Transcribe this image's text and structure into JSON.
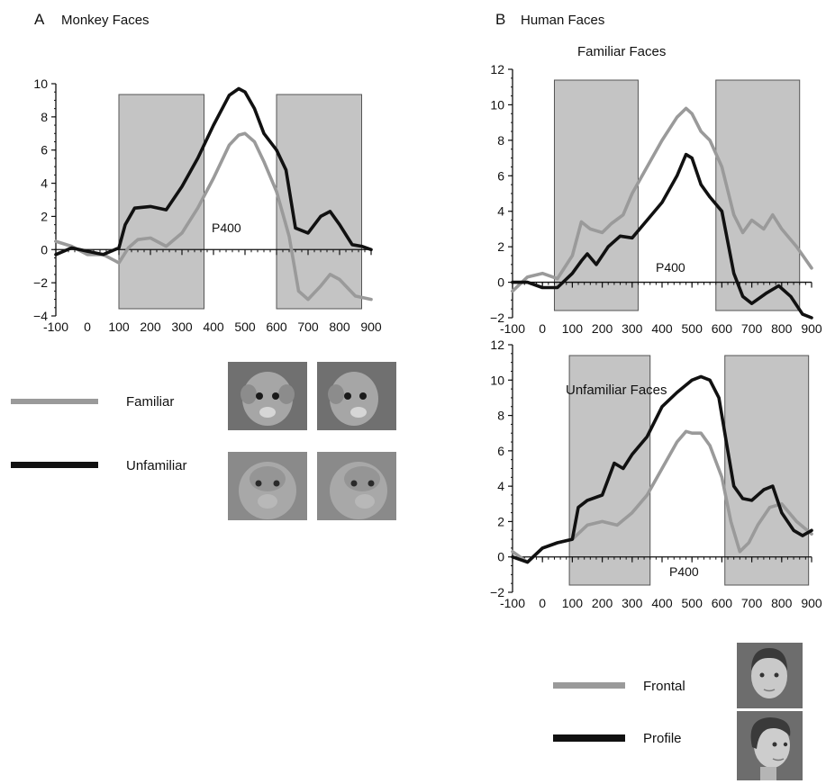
{
  "panel_a": {
    "letter": "A",
    "title": "Monkey Faces"
  },
  "panel_b": {
    "letter": "B",
    "title": "Human Faces"
  },
  "colors": {
    "light_series": "#9a9a9a",
    "dark_series": "#111111",
    "shaded_window": "#c4c4c4"
  },
  "legend_a": {
    "items": [
      "Familiar",
      "Unfamiliar"
    ],
    "icons": [
      "monkey-face-photo-frontal",
      "monkey-face-photo-profile"
    ]
  },
  "legend_b": {
    "items": [
      "Frontal",
      "Profile"
    ],
    "icons": [
      "human-face-photo-frontal",
      "human-face-photo-profile"
    ]
  },
  "chart_data": [
    {
      "id": "monkey",
      "type": "line",
      "title": "",
      "annotation": "P400",
      "xlim": [
        -100,
        900
      ],
      "ylim": [
        -4,
        10
      ],
      "xticks": [
        -100,
        0,
        100,
        200,
        300,
        400,
        500,
        600,
        700,
        800,
        900
      ],
      "xtick_labels": [
        "-100",
        "0",
        "100",
        "200",
        "300",
        "400",
        "500",
        "600",
        "700",
        "800",
        "900"
      ],
      "yticks": [
        -4,
        -2,
        0,
        2,
        4,
        6,
        8,
        10
      ],
      "ytick_labels": [
        "−4",
        "−2",
        "0",
        "2",
        "4",
        "6",
        "8",
        "10"
      ],
      "windows": [
        [
          100,
          370
        ],
        [
          600,
          870
        ]
      ],
      "series": [
        {
          "name": "Familiar",
          "style": "light",
          "x": [
            -100,
            -50,
            0,
            50,
            100,
            130,
            160,
            200,
            250,
            300,
            350,
            400,
            450,
            480,
            500,
            530,
            560,
            600,
            640,
            670,
            700,
            740,
            770,
            800,
            850,
            900
          ],
          "y": [
            0.5,
            0.2,
            -0.3,
            -0.3,
            -0.8,
            0.1,
            0.6,
            0.7,
            0.2,
            1.0,
            2.5,
            4.3,
            6.3,
            6.9,
            7.0,
            6.5,
            5.3,
            3.5,
            0.8,
            -2.5,
            -3.0,
            -2.2,
            -1.5,
            -1.8,
            -2.8,
            -3.0
          ]
        },
        {
          "name": "Unfamiliar",
          "style": "dark",
          "x": [
            -100,
            -50,
            0,
            50,
            100,
            120,
            150,
            200,
            250,
            300,
            350,
            400,
            450,
            480,
            500,
            530,
            560,
            600,
            630,
            660,
            700,
            740,
            770,
            800,
            840,
            870,
            900
          ],
          "y": [
            -0.3,
            0.1,
            -0.1,
            -0.3,
            0.1,
            1.5,
            2.5,
            2.6,
            2.4,
            3.8,
            5.5,
            7.5,
            9.3,
            9.7,
            9.5,
            8.5,
            7.0,
            6.0,
            4.8,
            1.3,
            1.0,
            2.0,
            2.3,
            1.5,
            0.3,
            0.2,
            0.0
          ]
        }
      ]
    },
    {
      "id": "human-familiar",
      "type": "line",
      "title": "Familiar Faces",
      "annotation": "P400",
      "xlim": [
        -100,
        900
      ],
      "ylim": [
        -2,
        12
      ],
      "xticks": [
        -100,
        0,
        100,
        200,
        300,
        400,
        500,
        600,
        700,
        800,
        900
      ],
      "xtick_labels": [
        "-100",
        "0",
        "100",
        "200",
        "300",
        "400",
        "500",
        "600",
        "700",
        "800",
        "900"
      ],
      "yticks": [
        -2,
        0,
        2,
        4,
        6,
        8,
        10,
        12
      ],
      "ytick_labels": [
        "−2",
        "0",
        "2",
        "4",
        "6",
        "8",
        "10",
        "12"
      ],
      "windows": [
        [
          40,
          320
        ],
        [
          580,
          860
        ]
      ],
      "series": [
        {
          "name": "Frontal",
          "style": "light",
          "x": [
            -100,
            -50,
            0,
            50,
            100,
            130,
            160,
            200,
            230,
            270,
            300,
            350,
            400,
            450,
            480,
            500,
            530,
            560,
            600,
            640,
            670,
            700,
            740,
            770,
            800,
            850,
            900
          ],
          "y": [
            -0.5,
            0.3,
            0.5,
            0.2,
            1.5,
            3.4,
            3.0,
            2.8,
            3.3,
            3.8,
            5.0,
            6.5,
            8.0,
            9.3,
            9.8,
            9.5,
            8.5,
            8.0,
            6.5,
            3.8,
            2.8,
            3.5,
            3.0,
            3.8,
            3.0,
            2.0,
            0.8
          ]
        },
        {
          "name": "Profile",
          "style": "dark",
          "x": [
            -100,
            -50,
            0,
            50,
            100,
            130,
            150,
            180,
            220,
            260,
            300,
            350,
            400,
            450,
            480,
            500,
            530,
            560,
            600,
            640,
            670,
            700,
            750,
            790,
            830,
            870,
            900
          ],
          "y": [
            0.0,
            0.0,
            -0.3,
            -0.3,
            0.5,
            1.2,
            1.6,
            1.0,
            2.0,
            2.6,
            2.5,
            3.5,
            4.5,
            6.0,
            7.2,
            7.0,
            5.5,
            4.8,
            4.0,
            0.5,
            -0.8,
            -1.2,
            -0.6,
            -0.2,
            -0.8,
            -1.8,
            -2.0
          ]
        }
      ]
    },
    {
      "id": "human-unfamiliar",
      "type": "line",
      "title": "Unfamiliar Faces",
      "annotation": "P400",
      "xlim": [
        -100,
        900
      ],
      "ylim": [
        -2,
        12
      ],
      "xticks": [
        -100,
        0,
        100,
        200,
        300,
        400,
        500,
        600,
        700,
        800,
        900
      ],
      "xtick_labels": [
        "-100",
        "0",
        "100",
        "200",
        "300",
        "400",
        "500",
        "600",
        "700",
        "800",
        "900"
      ],
      "yticks": [
        -2,
        0,
        2,
        4,
        6,
        8,
        10,
        12
      ],
      "ytick_labels": [
        "−2",
        "0",
        "2",
        "4",
        "6",
        "8",
        "10",
        "12"
      ],
      "windows": [
        [
          90,
          360
        ],
        [
          610,
          890
        ]
      ],
      "series": [
        {
          "name": "Frontal",
          "style": "light",
          "x": [
            -100,
            -50,
            0,
            50,
            100,
            150,
            200,
            250,
            300,
            350,
            400,
            450,
            480,
            500,
            530,
            560,
            600,
            630,
            660,
            690,
            720,
            760,
            800,
            850,
            900
          ],
          "y": [
            0.3,
            -0.3,
            0.5,
            0.8,
            1.0,
            1.8,
            2.0,
            1.8,
            2.5,
            3.5,
            5.0,
            6.5,
            7.1,
            7.0,
            7.0,
            6.3,
            4.5,
            2.0,
            0.3,
            0.8,
            1.8,
            2.8,
            3.0,
            2.0,
            1.3
          ]
        },
        {
          "name": "Profile",
          "style": "dark",
          "x": [
            -100,
            -50,
            0,
            50,
            100,
            120,
            150,
            200,
            240,
            270,
            300,
            350,
            400,
            450,
            500,
            530,
            560,
            590,
            620,
            640,
            670,
            700,
            740,
            770,
            800,
            840,
            870,
            900
          ],
          "y": [
            0.0,
            -0.3,
            0.5,
            0.8,
            1.0,
            2.8,
            3.2,
            3.5,
            5.3,
            5.0,
            5.8,
            6.8,
            8.5,
            9.3,
            10.0,
            10.2,
            10.0,
            9.0,
            6.0,
            4.0,
            3.3,
            3.2,
            3.8,
            4.0,
            2.5,
            1.5,
            1.2,
            1.5
          ]
        }
      ]
    }
  ]
}
